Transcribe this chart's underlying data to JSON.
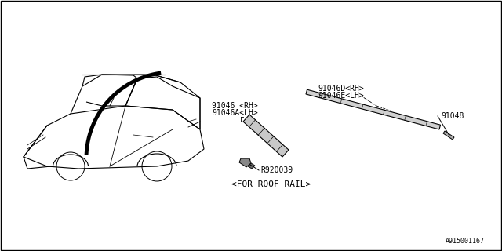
{
  "background_color": "#ffffff",
  "border_color": "#000000",
  "diagram_id": "A915001167",
  "labels": {
    "part1": "91046D<RH>",
    "part1b": "91046E<LH>",
    "part2": "91046 <RH>",
    "part2b": "91046A<LH>",
    "part3": "91048",
    "part4": "R920039",
    "caption": "<FOR ROOF RAIL>"
  },
  "line_color": "#000000",
  "text_color": "#000000",
  "font_size_small": 7,
  "font_size_caption": 8
}
